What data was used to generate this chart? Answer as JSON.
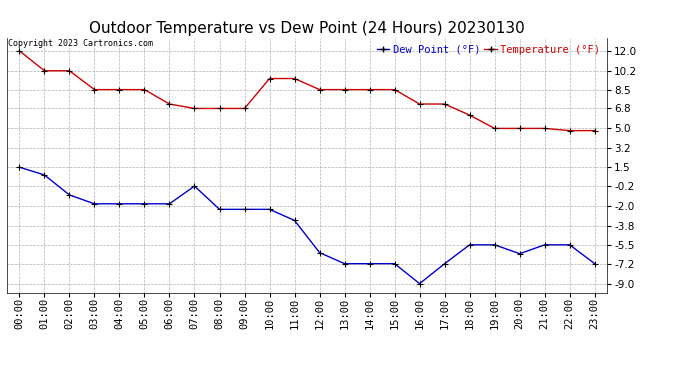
{
  "title": "Outdoor Temperature vs Dew Point (24 Hours) 20230130",
  "copyright_text": "Copyright 2023 Cartronics.com",
  "legend_dew": "Dew Point (°F)",
  "legend_temp": "Temperature (°F)",
  "hours": [
    "00:00",
    "01:00",
    "02:00",
    "03:00",
    "04:00",
    "05:00",
    "06:00",
    "07:00",
    "08:00",
    "09:00",
    "10:00",
    "11:00",
    "12:00",
    "13:00",
    "14:00",
    "15:00",
    "16:00",
    "17:00",
    "18:00",
    "19:00",
    "20:00",
    "21:00",
    "22:00",
    "23:00"
  ],
  "temperature": [
    12.0,
    10.2,
    10.2,
    8.5,
    8.5,
    8.5,
    7.2,
    6.8,
    6.8,
    6.8,
    9.5,
    9.5,
    8.5,
    8.5,
    8.5,
    8.5,
    7.2,
    7.2,
    6.2,
    5.0,
    5.0,
    5.0,
    4.8,
    4.8
  ],
  "dew_point": [
    1.5,
    0.8,
    -1.0,
    -1.8,
    -1.8,
    -1.8,
    -1.8,
    -0.2,
    -2.3,
    -2.3,
    -2.3,
    -3.3,
    -6.2,
    -7.2,
    -7.2,
    -7.2,
    -9.0,
    -7.2,
    -5.5,
    -5.5,
    -6.3,
    -5.5,
    -5.5,
    -7.2
  ],
  "temp_color": "#cc0000",
  "dew_color": "#0000cc",
  "grid_color": "#aaaaaa",
  "background_color": "#ffffff",
  "yticks": [
    12.0,
    10.2,
    8.5,
    6.8,
    5.0,
    3.2,
    1.5,
    -0.2,
    -2.0,
    -3.8,
    -5.5,
    -7.2,
    -9.0
  ],
  "ylim_min": -9.8,
  "ylim_max": 13.2,
  "title_fontsize": 11,
  "axis_fontsize": 7.5,
  "legend_fontsize": 7.5
}
